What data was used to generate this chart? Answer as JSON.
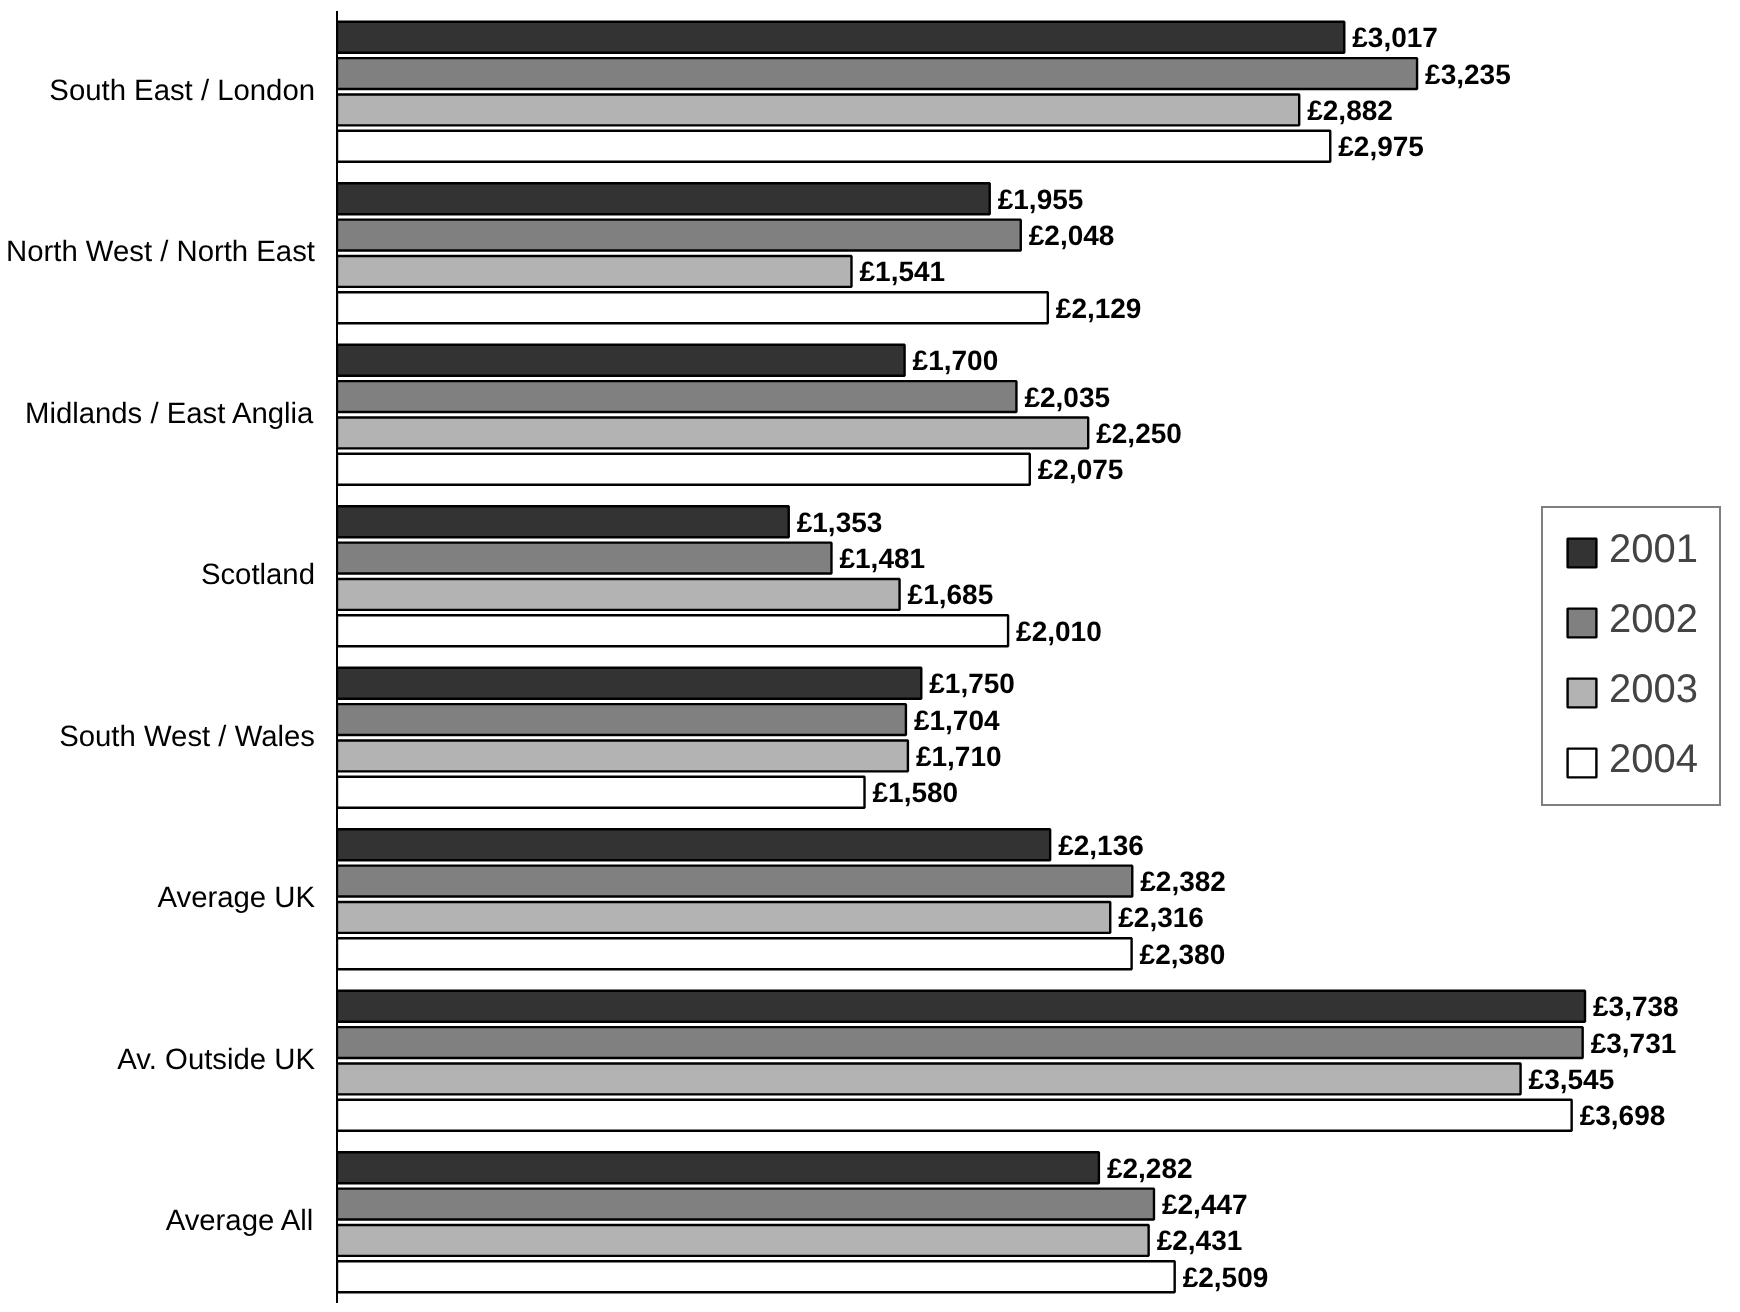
{
  "chart_data": {
    "type": "bar",
    "orientation": "horizontal",
    "categories": [
      "South East / London",
      "North West / North East",
      "Midlands / East Anglia",
      "Scotland",
      "South West / Wales",
      "Average UK",
      "Av. Outside UK",
      "Average All"
    ],
    "tick_labels": "y",
    "grid": false,
    "legend": "right",
    "series": [
      {
        "name": "2001",
        "color": "#333333",
        "values": [
          3017,
          1955,
          1700,
          1353,
          1750,
          2136,
          3738,
          2282
        ],
        "value_labels": [
          "£3,017",
          "£1,955",
          "£1,700",
          "£1,353",
          "£1,750",
          "£2,136",
          "£3,738",
          "£2,282"
        ]
      },
      {
        "name": "2002",
        "color": "#808080",
        "values": [
          3235,
          2048,
          2035,
          1481,
          1704,
          2382,
          3731,
          2447
        ],
        "value_labels": [
          "£3,235",
          "£2,048",
          "£2,035",
          "£1,481",
          "£1,704",
          "£2,382",
          "£3,731",
          "£2,447"
        ]
      },
      {
        "name": "2003",
        "color": "#b3b3b3",
        "values": [
          2882,
          1541,
          2250,
          1685,
          1710,
          2316,
          3545,
          2431
        ],
        "value_labels": [
          "£2,882",
          "£1,541",
          "£2,250",
          "£1,685",
          "£1,710",
          "£2,316",
          "£3,545",
          "£2,431"
        ]
      },
      {
        "name": "2004",
        "color": "#ffffff",
        "values": [
          2975,
          2129,
          2075,
          2010,
          1580,
          2380,
          3698,
          2509
        ],
        "value_labels": [
          "£2,975",
          "£2,129",
          "£2,075",
          "£2,010",
          "£1,580",
          "£2,380",
          "£3,698",
          "£2,509"
        ]
      }
    ]
  }
}
